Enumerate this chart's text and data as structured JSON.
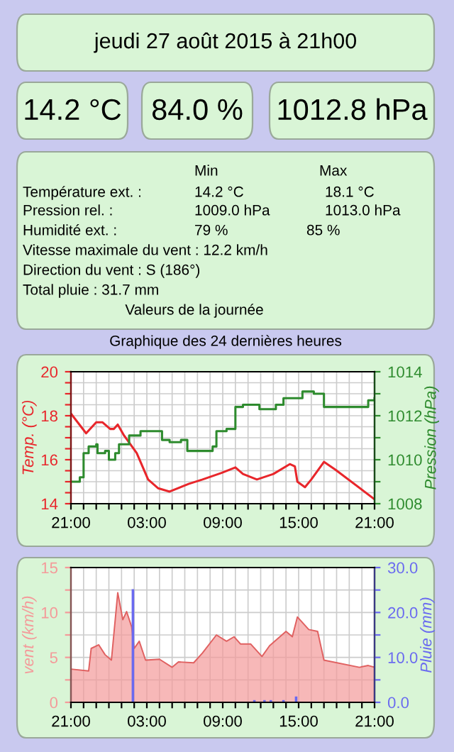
{
  "chart_data": [
    {
      "type": "other",
      "title": "jeudi 27 août 2015 à 21h00",
      "annotations": [
        "14.2 °C",
        "84.0 %",
        "1012.8 hPa",
        "Min",
        "Max",
        "Température ext. :",
        "14.2 °C",
        "18.1 °C",
        "Pression rel. :",
        "1009.0 hPa",
        "1013.0 hPa",
        "Humidité ext. :",
        "79 %",
        "85 %",
        "Vitesse maximale du vent : 12.2 km/h",
        "Direction du vent : S (186°)",
        "Total pluie : 31.7 mm",
        "Valeurs de la journée"
      ]
    },
    {
      "type": "line",
      "title": "Graphique des 24 dernières heures",
      "ylabel": "Temp. (°C)",
      "y2label": "Pression (hPa)",
      "grid": true,
      "legend": false,
      "xlim": [
        "2015-08-26T21:00",
        "2015-08-27T21:00"
      ],
      "xticks": [
        {
          "value": "2015-08-26T21:00",
          "label": "21:00"
        },
        {
          "value": "2015-08-26T22:00",
          "label": null
        },
        {
          "value": "2015-08-26T23:00",
          "label": null
        },
        {
          "value": "2015-08-27T00:00",
          "label": null
        },
        {
          "value": "2015-08-27T01:00",
          "label": null
        },
        {
          "value": "2015-08-27T02:00",
          "label": null
        },
        {
          "value": "2015-08-27T03:00",
          "label": "03:00"
        },
        {
          "value": "2015-08-27T04:00",
          "label": null
        },
        {
          "value": "2015-08-27T05:00",
          "label": null
        },
        {
          "value": "2015-08-27T06:00",
          "label": null
        },
        {
          "value": "2015-08-27T07:00",
          "label": null
        },
        {
          "value": "2015-08-27T08:00",
          "label": null
        },
        {
          "value": "2015-08-27T09:00",
          "label": "09:00"
        },
        {
          "value": "2015-08-27T10:00",
          "label": null
        },
        {
          "value": "2015-08-27T11:00",
          "label": null
        },
        {
          "value": "2015-08-27T12:00",
          "label": null
        },
        {
          "value": "2015-08-27T13:00",
          "label": null
        },
        {
          "value": "2015-08-27T14:00",
          "label": null
        },
        {
          "value": "2015-08-27T15:00",
          "label": "15:00"
        },
        {
          "value": "2015-08-27T16:00",
          "label": null
        },
        {
          "value": "2015-08-27T17:00",
          "label": null
        },
        {
          "value": "2015-08-27T18:00",
          "label": null
        },
        {
          "value": "2015-08-27T19:00",
          "label": null
        },
        {
          "value": "2015-08-27T20:00",
          "label": null
        },
        {
          "value": "2015-08-27T21:00",
          "label": "21:00"
        }
      ],
      "ylim": [
        14,
        20
      ],
      "yticks": [
        14,
        {
          "value": 14.5,
          "label": null
        },
        {
          "value": 15,
          "label": null
        },
        {
          "value": 15.5,
          "label": null
        },
        16,
        {
          "value": 16.5,
          "label": null
        },
        {
          "value": 17,
          "label": null
        },
        {
          "value": 17.5,
          "label": null
        },
        18,
        {
          "value": 18.5,
          "label": null
        },
        {
          "value": 19,
          "label": null
        },
        {
          "value": 19.5,
          "label": null
        },
        20
      ],
      "y2lim": [
        1008,
        1014
      ],
      "y2ticks": [
        1008,
        {
          "value": 1009,
          "label": null
        },
        1010,
        {
          "value": 1011,
          "label": null
        },
        1012,
        {
          "value": 1013,
          "label": null
        },
        1014
      ],
      "series": [
        {
          "type": "line",
          "color": "#e8262b",
          "x": [
            "2015-08-26T21:00",
            "2015-08-26T22:12",
            "2015-08-26T23:00",
            "2015-08-26T23:30",
            "2015-08-27T00:06",
            "2015-08-27T00:24",
            "2015-08-27T00:42",
            "2015-08-27T01:12",
            "2015-08-27T02:12",
            "2015-08-27T03:06",
            "2015-08-27T03:54",
            "2015-08-27T04:48",
            "2015-08-27T06:18",
            "2015-08-27T07:24",
            "2015-08-27T08:54",
            "2015-08-27T10:00",
            "2015-08-27T10:36",
            "2015-08-27T11:42",
            "2015-08-27T13:00",
            "2015-08-27T14:18",
            "2015-08-27T14:42",
            "2015-08-27T14:54",
            "2015-08-27T15:30",
            "2015-08-27T16:00",
            "2015-08-27T17:00",
            "2015-08-27T17:54",
            "2015-08-27T21:00"
          ],
          "values": [
            18.1,
            17.2,
            17.7,
            17.7,
            17.4,
            17.4,
            17.6,
            17.1,
            16.3,
            15.1,
            14.7,
            14.55,
            14.9,
            15.1,
            15.4,
            15.65,
            15.35,
            15.1,
            15.35,
            15.8,
            15.7,
            15.0,
            14.75,
            15.1,
            15.9,
            15.55,
            14.2
          ]
        },
        {
          "type": "step",
          "axis": "y2",
          "color": "#2e8b2e",
          "x": [
            "2015-08-26T21:00",
            "2015-08-26T21:42",
            "2015-08-26T22:00",
            "2015-08-26T22:24",
            "2015-08-26T23:00",
            "2015-08-26T23:06",
            "2015-08-26T23:42",
            "2015-08-27T00:00",
            "2015-08-27T00:30",
            "2015-08-27T00:48",
            "2015-08-27T01:36",
            "2015-08-27T02:30",
            "2015-08-27T03:54",
            "2015-08-27T04:12",
            "2015-08-27T04:48",
            "2015-08-27T05:42",
            "2015-08-27T06:12",
            "2015-08-27T07:12",
            "2015-08-27T08:12",
            "2015-08-27T08:30",
            "2015-08-27T09:18",
            "2015-08-27T10:00",
            "2015-08-27T10:36",
            "2015-08-27T11:54",
            "2015-08-27T13:12",
            "2015-08-27T13:48",
            "2015-08-27T15:18",
            "2015-08-27T16:12",
            "2015-08-27T17:00",
            "2015-08-27T20:30",
            "2015-08-27T21:00"
          ],
          "values": [
            1009.0,
            1009.2,
            1010.3,
            1010.6,
            1010.7,
            1010.3,
            1010.4,
            1010.0,
            1010.3,
            1010.7,
            1011.1,
            1011.3,
            1011.3,
            1010.9,
            1010.8,
            1010.9,
            1010.4,
            1010.4,
            1010.6,
            1011.3,
            1011.4,
            1012.4,
            1012.5,
            1012.3,
            1012.5,
            1012.8,
            1013.1,
            1013.0,
            1012.4,
            1012.7,
            1012.8
          ]
        }
      ]
    },
    {
      "type": "area",
      "ylabel": "vent (km/h)",
      "y2label": "Pluie (mm)",
      "grid": true,
      "legend": false,
      "xlim": [
        "2015-08-26T21:00",
        "2015-08-27T21:00"
      ],
      "xticks": [
        {
          "value": "2015-08-26T21:00",
          "label": "21:00"
        },
        {
          "value": "2015-08-26T22:00",
          "label": null
        },
        {
          "value": "2015-08-26T23:00",
          "label": null
        },
        {
          "value": "2015-08-27T00:00",
          "label": null
        },
        {
          "value": "2015-08-27T01:00",
          "label": null
        },
        {
          "value": "2015-08-27T02:00",
          "label": null
        },
        {
          "value": "2015-08-27T03:00",
          "label": "03:00"
        },
        {
          "value": "2015-08-27T04:00",
          "label": null
        },
        {
          "value": "2015-08-27T05:00",
          "label": null
        },
        {
          "value": "2015-08-27T06:00",
          "label": null
        },
        {
          "value": "2015-08-27T07:00",
          "label": null
        },
        {
          "value": "2015-08-27T08:00",
          "label": null
        },
        {
          "value": "2015-08-27T09:00",
          "label": "09:00"
        },
        {
          "value": "2015-08-27T10:00",
          "label": null
        },
        {
          "value": "2015-08-27T11:00",
          "label": null
        },
        {
          "value": "2015-08-27T12:00",
          "label": null
        },
        {
          "value": "2015-08-27T13:00",
          "label": null
        },
        {
          "value": "2015-08-27T14:00",
          "label": null
        },
        {
          "value": "2015-08-27T15:00",
          "label": "15:00"
        },
        {
          "value": "2015-08-27T16:00",
          "label": null
        },
        {
          "value": "2015-08-27T17:00",
          "label": null
        },
        {
          "value": "2015-08-27T18:00",
          "label": null
        },
        {
          "value": "2015-08-27T19:00",
          "label": null
        },
        {
          "value": "2015-08-27T20:00",
          "label": null
        },
        {
          "value": "2015-08-27T21:00",
          "label": "21:00"
        }
      ],
      "ylim": [
        0,
        15
      ],
      "yticks": [
        0,
        {
          "value": 2.5,
          "label": null
        },
        5,
        {
          "value": 7.5,
          "label": null
        },
        10,
        {
          "value": 12.5,
          "label": null
        },
        15
      ],
      "y2lim": [
        0,
        30
      ],
      "y2ticks": [
        {
          "value": 0,
          "label": "0.0"
        },
        {
          "value": 5,
          "label": null
        },
        {
          "value": 10,
          "label": "10.0"
        },
        {
          "value": 15,
          "label": null
        },
        {
          "value": 20,
          "label": "20.0"
        },
        {
          "value": 25,
          "label": null
        },
        {
          "value": 30,
          "label": "30.0"
        }
      ],
      "series": [
        {
          "type": "area",
          "color": "#f49a9a",
          "x": [
            "2015-08-26T21:00",
            "2015-08-26T22:24",
            "2015-08-26T22:36",
            "2015-08-26T23:12",
            "2015-08-26T23:42",
            "2015-08-27T00:12",
            "2015-08-27T00:42",
            "2015-08-27T01:06",
            "2015-08-27T01:24",
            "2015-08-27T01:48",
            "2015-08-27T02:00",
            "2015-08-27T02:24",
            "2015-08-27T02:54",
            "2015-08-27T04:00",
            "2015-08-27T05:00",
            "2015-08-27T05:30",
            "2015-08-27T06:42",
            "2015-08-27T07:24",
            "2015-08-27T08:30",
            "2015-08-27T09:18",
            "2015-08-27T09:54",
            "2015-08-27T10:24",
            "2015-08-27T11:12",
            "2015-08-27T12:06",
            "2015-08-27T12:42",
            "2015-08-27T14:00",
            "2015-08-27T14:30",
            "2015-08-27T14:54",
            "2015-08-27T15:48",
            "2015-08-27T16:30",
            "2015-08-27T17:00",
            "2015-08-27T19:48",
            "2015-08-27T20:30",
            "2015-08-27T21:00"
          ],
          "values": [
            3.7,
            3.5,
            6.0,
            6.4,
            5.3,
            4.7,
            12.2,
            9.2,
            10.1,
            8.4,
            6.0,
            6.8,
            4.7,
            4.8,
            3.9,
            4.5,
            4.4,
            5.5,
            7.5,
            6.8,
            7.3,
            6.5,
            6.5,
            5.1,
            6.3,
            7.9,
            7.3,
            9.5,
            8.1,
            7.9,
            4.7,
            3.9,
            4.1,
            3.9
          ]
        },
        {
          "type": "bar",
          "axis": "y2",
          "color": "#6a6af0",
          "x": [
            "2015-08-27T01:54",
            "2015-08-27T11:30",
            "2015-08-27T12:18",
            "2015-08-27T12:48",
            "2015-08-27T13:48",
            "2015-08-27T14:48"
          ],
          "values": [
            25.2,
            0.5,
            0.5,
            0.5,
            0.5,
            1.3
          ]
        }
      ]
    }
  ]
}
